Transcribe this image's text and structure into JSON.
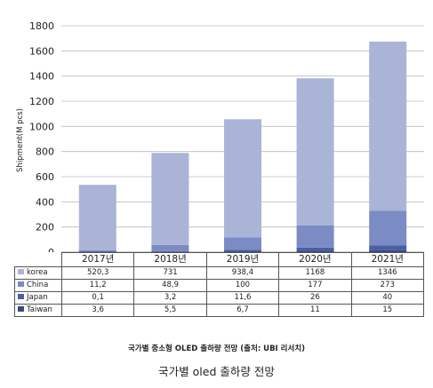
{
  "chart_data": {
    "type": "bar",
    "stacked": true,
    "title": "",
    "xlabel": "",
    "ylabel": "Shipment(M pcs)",
    "ylim": [
      0,
      1800
    ],
    "yticks": [
      0,
      200,
      400,
      600,
      800,
      1000,
      1200,
      1400,
      1600,
      1800
    ],
    "grid": true,
    "categories": [
      "2017년",
      "2018년",
      "2019년",
      "2020년",
      "2021년"
    ],
    "series": [
      {
        "name": "korea",
        "color": "#a9b4d6",
        "values": [
          520.3,
          731,
          938.4,
          1168,
          1346
        ],
        "labels": [
          "520,3",
          "731",
          "938,4",
          "1168",
          "1346"
        ]
      },
      {
        "name": "China",
        "color": "#7b8cc4",
        "values": [
          11.2,
          48.9,
          100,
          177,
          273
        ],
        "labels": [
          "11,2",
          "48,9",
          "100",
          "177",
          "273"
        ]
      },
      {
        "name": "Japan",
        "color": "#4a5ea6",
        "values": [
          0.1,
          3.2,
          11.6,
          26,
          40
        ],
        "labels": [
          "0,1",
          "3,2",
          "11,6",
          "26",
          "40"
        ]
      },
      {
        "name": "Taiwan",
        "color": "#3b4a78",
        "values": [
          3.6,
          5.5,
          6.7,
          11,
          15
        ],
        "labels": [
          "3,6",
          "5,5",
          "6,7",
          "11",
          "15"
        ]
      }
    ]
  },
  "source_caption": "국가별 중소형 OLED 출하량 전망 (출처: UBI 리서치)",
  "caption": "국가별 oled 출하량 전망"
}
